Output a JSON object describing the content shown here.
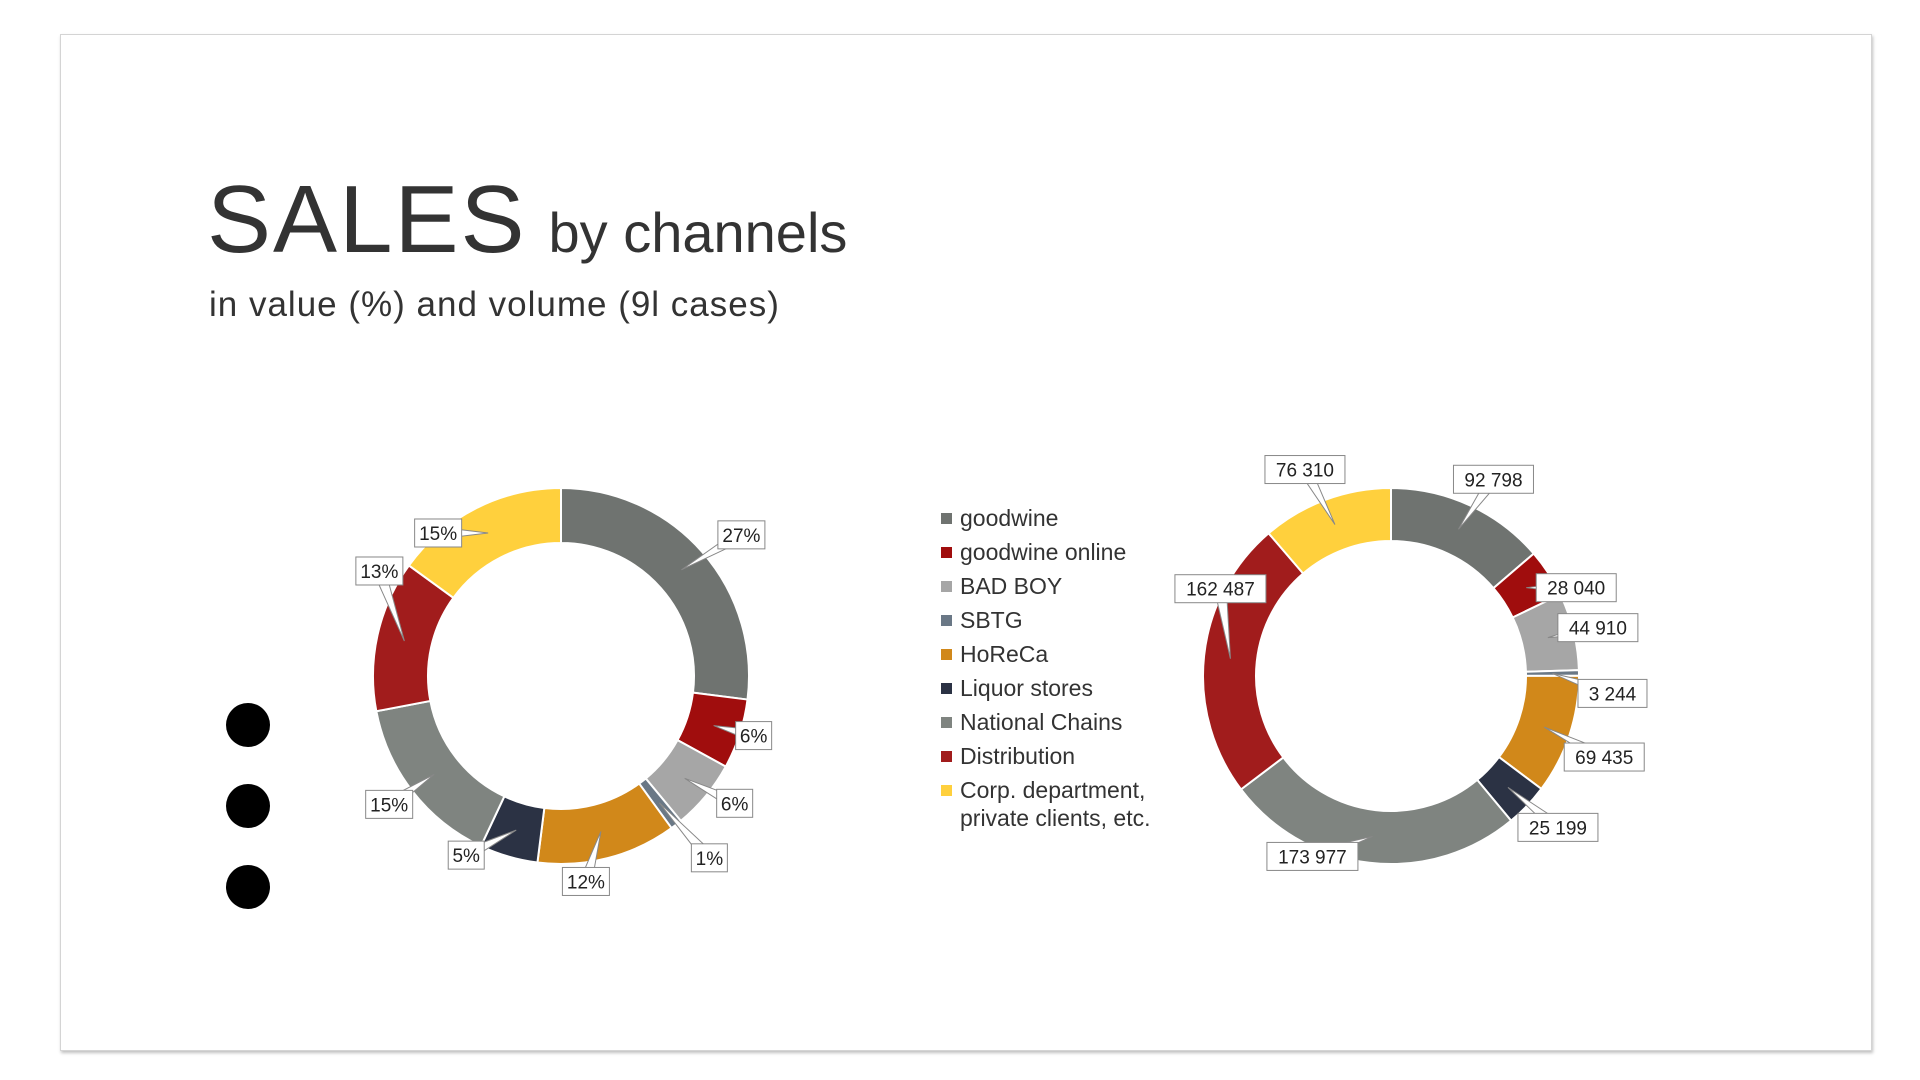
{
  "header": {
    "title_main": "SALES",
    "title_sub": "by channels",
    "subtitle": "in value (%) and volume (9l cases)"
  },
  "chart_data": [
    {
      "type": "pie",
      "title": "",
      "categories": [
        "goodwine",
        "goodwine online",
        "BAD BOY",
        "SBTG",
        "HoReCa",
        "Liquor stores",
        "National Chains",
        "Distribution",
        "Corp. department, private clients, etc."
      ],
      "values": [
        27,
        6,
        6,
        1,
        12,
        5,
        15,
        13,
        15
      ],
      "labels": [
        "27%",
        "6%",
        "6%",
        "1%",
        "12%",
        "5%",
        "15%",
        "13%",
        "15%"
      ],
      "colors": [
        "#6f7370",
        "#a00d0d",
        "#a6a6a6",
        "#6a7886",
        "#d1881a",
        "#2b3244",
        "#7f8480",
        "#a11c1c",
        "#ffd03d"
      ],
      "legend": "center"
    },
    {
      "type": "pie",
      "title": "",
      "categories": [
        "goodwine",
        "goodwine online",
        "BAD BOY",
        "SBTG",
        "HoReCa",
        "Liquor stores",
        "National Chains",
        "Distribution",
        "Corp. department, private clients, etc."
      ],
      "values": [
        92798,
        28040,
        44910,
        3244,
        69435,
        25199,
        173977,
        162487,
        76310
      ],
      "labels": [
        "92 798",
        "28 040",
        "44 910",
        "3 244",
        "69 435",
        "25 199",
        "173 977",
        "162 487",
        "76 310"
      ],
      "colors": [
        "#6f7370",
        "#a00d0d",
        "#a6a6a6",
        "#6a7886",
        "#d1881a",
        "#2b3244",
        "#7f8480",
        "#a11c1c",
        "#ffd03d"
      ],
      "legend": "center"
    }
  ],
  "legend": {
    "items": [
      {
        "label": "goodwine",
        "color": "#6f7370"
      },
      {
        "label": "goodwine online",
        "color": "#a00d0d"
      },
      {
        "label": "BAD BOY",
        "color": "#a6a6a6"
      },
      {
        "label": "SBTG",
        "color": "#6a7886"
      },
      {
        "label": "HoReCa",
        "color": "#d1881a"
      },
      {
        "label": "Liquor stores",
        "color": "#2b3244"
      },
      {
        "label": "National Chains",
        "color": "#7f8480"
      },
      {
        "label": "Distribution",
        "color": "#a11c1c"
      },
      {
        "label": "Corp. department,\nprivate clients, etc.",
        "color": "#ffd03d"
      }
    ]
  }
}
